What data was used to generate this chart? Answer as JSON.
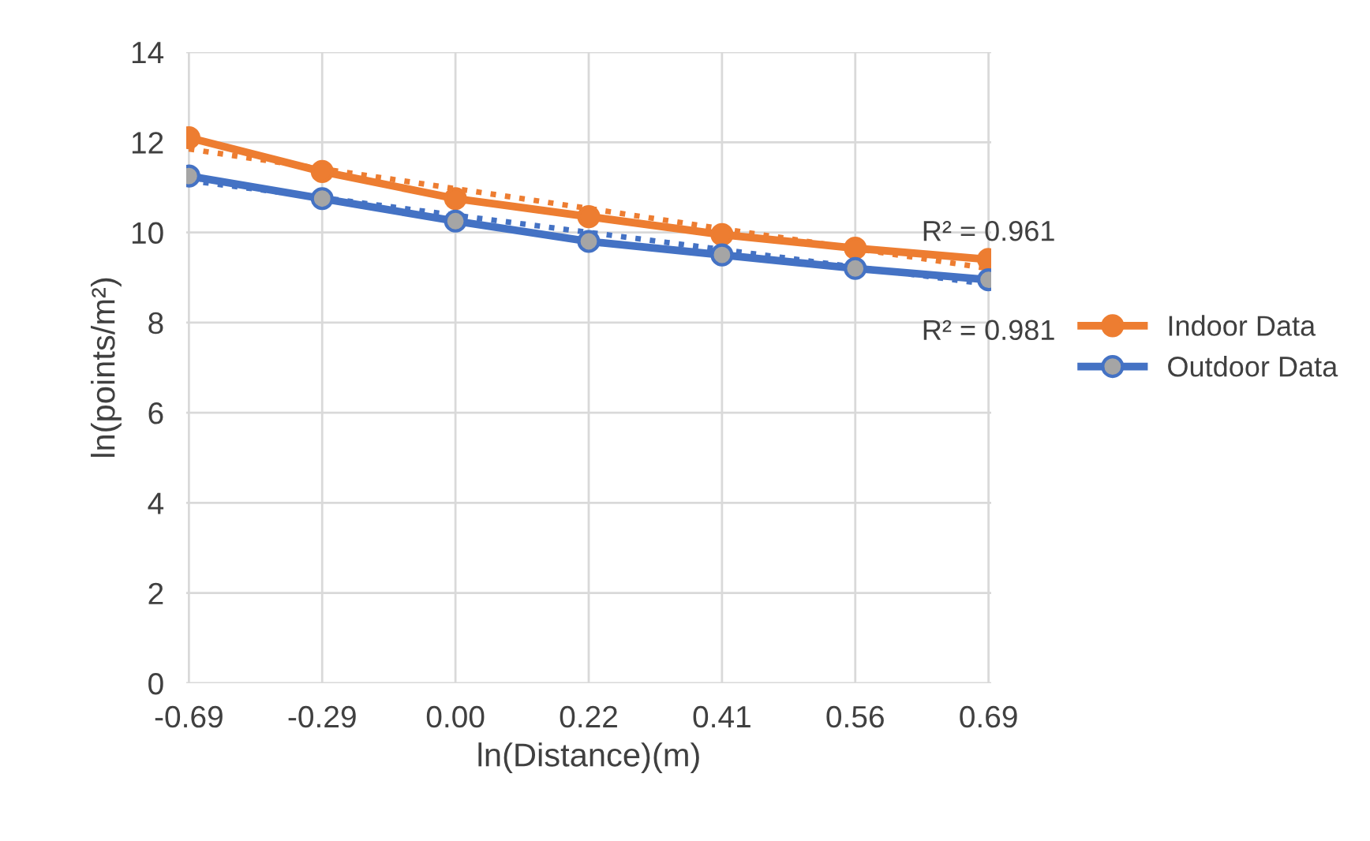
{
  "chart_data": {
    "type": "line",
    "xlabel": "ln(Distance)(m)",
    "ylabel": "ln(points/m²)",
    "categories": [
      "-0.69",
      "-0.29",
      "0.00",
      "0.22",
      "0.41",
      "0.56",
      "0.69"
    ],
    "series": [
      {
        "name": "Indoor Data",
        "color": "#ed7d31",
        "values": [
          12.1,
          11.35,
          10.75,
          10.35,
          9.95,
          9.65,
          9.4
        ],
        "marker": "circle"
      },
      {
        "name": "Outdoor Data",
        "color": "#4472c4",
        "values": [
          11.25,
          10.75,
          10.25,
          9.8,
          9.5,
          9.2,
          8.95
        ],
        "marker": "circle"
      },
      {
        "color": "#ed7d31",
        "values": [
          11.85,
          11.41,
          10.97,
          10.53,
          10.08,
          9.64,
          9.2
        ],
        "line_style": "dotted",
        "marker": "none"
      },
      {
        "color": "#4472c4",
        "values": [
          11.15,
          10.77,
          10.38,
          10.0,
          9.62,
          9.23,
          8.85
        ],
        "line_style": "dotted",
        "marker": "none"
      }
    ],
    "ylim": [
      0,
      14
    ],
    "yticks": [
      0,
      2,
      4,
      6,
      8,
      10,
      12,
      14
    ],
    "grid": true,
    "legend": "right",
    "annotations": [
      "R² = 0.961",
      "R² = 0.981"
    ]
  }
}
